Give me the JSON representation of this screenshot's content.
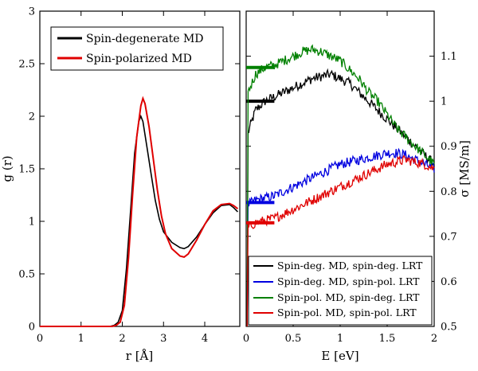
{
  "chart_data": [
    {
      "type": "line",
      "title": "",
      "xlabel": "r [Å]",
      "ylabel": "g (r)",
      "xlim": [
        0,
        4.85
      ],
      "ylim": [
        0,
        3
      ],
      "xticks": [
        "0",
        "1",
        "2",
        "3",
        "4"
      ],
      "yticks": [
        "0",
        "0.5",
        "1",
        "1.5",
        "2",
        "2.5",
        "3"
      ],
      "legend": "top-left",
      "series": [
        {
          "name": "Spin-degenerate MD",
          "color": "#000000",
          "x": [
            0,
            1.7,
            1.8,
            1.9,
            2.0,
            2.1,
            2.2,
            2.3,
            2.4,
            2.45,
            2.5,
            2.6,
            2.7,
            2.8,
            2.9,
            3.0,
            3.2,
            3.4,
            3.5,
            3.6,
            3.8,
            4.0,
            4.2,
            4.4,
            4.6,
            4.7,
            4.8
          ],
          "y": [
            0,
            0,
            0.01,
            0.04,
            0.15,
            0.55,
            1.1,
            1.65,
            1.95,
            2.0,
            1.95,
            1.7,
            1.45,
            1.2,
            1.02,
            0.9,
            0.8,
            0.75,
            0.74,
            0.76,
            0.85,
            0.97,
            1.08,
            1.15,
            1.16,
            1.13,
            1.09
          ]
        },
        {
          "name": "Spin-polarized MD",
          "color": "#e00000",
          "x": [
            0,
            1.75,
            1.85,
            1.95,
            2.05,
            2.15,
            2.25,
            2.35,
            2.45,
            2.5,
            2.55,
            2.65,
            2.75,
            2.85,
            2.95,
            3.05,
            3.2,
            3.4,
            3.5,
            3.6,
            3.8,
            4.0,
            4.2,
            4.4,
            4.6,
            4.7,
            4.8
          ],
          "y": [
            0,
            0,
            0.01,
            0.04,
            0.2,
            0.65,
            1.25,
            1.8,
            2.1,
            2.17,
            2.12,
            1.9,
            1.6,
            1.3,
            1.05,
            0.88,
            0.74,
            0.67,
            0.66,
            0.69,
            0.82,
            0.97,
            1.1,
            1.16,
            1.17,
            1.15,
            1.12
          ]
        }
      ]
    },
    {
      "type": "line",
      "title": "",
      "xlabel": "E [eV]",
      "ylabel": "σ [MS/m]",
      "xlim": [
        0,
        2
      ],
      "ylim": [
        0.5,
        1.2
      ],
      "xticks": [
        "0",
        "0.5",
        "1",
        "1.5",
        "2"
      ],
      "yticks": [
        "0.5",
        "0.6",
        "0.7",
        "0.8",
        "0.9",
        "1",
        "1.1"
      ],
      "legend": "bottom-right",
      "series": [
        {
          "name": "Spin-deg. MD, spin-deg. LRT",
          "color": "#000000",
          "dc_value": 1.0,
          "x": [
            0.02,
            0.1,
            0.2,
            0.3,
            0.4,
            0.5,
            0.6,
            0.7,
            0.8,
            0.9,
            1.0,
            1.1,
            1.2,
            1.3,
            1.4,
            1.5,
            1.6,
            1.7,
            1.8,
            1.9,
            2.0
          ],
          "y": [
            0.93,
            0.98,
            1.0,
            1.01,
            1.02,
            1.03,
            1.04,
            1.05,
            1.055,
            1.06,
            1.05,
            1.04,
            1.02,
            1.0,
            0.98,
            0.96,
            0.94,
            0.92,
            0.9,
            0.88,
            0.86
          ]
        },
        {
          "name": "Spin-deg. MD, spin-pol. LRT",
          "color": "#0000e0",
          "dc_value": 0.775,
          "x": [
            0.02,
            0.1,
            0.2,
            0.3,
            0.4,
            0.5,
            0.6,
            0.7,
            0.8,
            0.9,
            1.0,
            1.1,
            1.2,
            1.3,
            1.4,
            1.5,
            1.6,
            1.7,
            1.8,
            1.9,
            2.0
          ],
          "y": [
            0.77,
            0.78,
            0.785,
            0.79,
            0.8,
            0.81,
            0.82,
            0.83,
            0.84,
            0.85,
            0.86,
            0.865,
            0.87,
            0.875,
            0.88,
            0.885,
            0.885,
            0.88,
            0.87,
            0.86,
            0.85
          ]
        },
        {
          "name": "Spin-pol. MD, spin-deg. LRT",
          "color": "#008000",
          "dc_value": 1.075,
          "x": [
            0.02,
            0.1,
            0.2,
            0.3,
            0.4,
            0.5,
            0.6,
            0.7,
            0.8,
            0.9,
            1.0,
            1.1,
            1.2,
            1.3,
            1.4,
            1.5,
            1.6,
            1.7,
            1.8,
            1.9,
            2.0
          ],
          "y": [
            1.02,
            1.06,
            1.075,
            1.08,
            1.09,
            1.1,
            1.11,
            1.115,
            1.11,
            1.1,
            1.09,
            1.07,
            1.05,
            1.02,
            1.0,
            0.97,
            0.94,
            0.92,
            0.9,
            0.88,
            0.86
          ]
        },
        {
          "name": "Spin-pol. MD, spin-pol. LRT",
          "color": "#e00000",
          "dc_value": 0.73,
          "x": [
            0.02,
            0.1,
            0.2,
            0.3,
            0.4,
            0.5,
            0.6,
            0.7,
            0.8,
            0.9,
            1.0,
            1.1,
            1.2,
            1.3,
            1.4,
            1.5,
            1.6,
            1.7,
            1.8,
            1.9,
            2.0
          ],
          "y": [
            0.72,
            0.73,
            0.735,
            0.74,
            0.75,
            0.76,
            0.77,
            0.78,
            0.79,
            0.8,
            0.81,
            0.82,
            0.83,
            0.84,
            0.85,
            0.86,
            0.865,
            0.87,
            0.865,
            0.86,
            0.85
          ]
        }
      ]
    }
  ]
}
